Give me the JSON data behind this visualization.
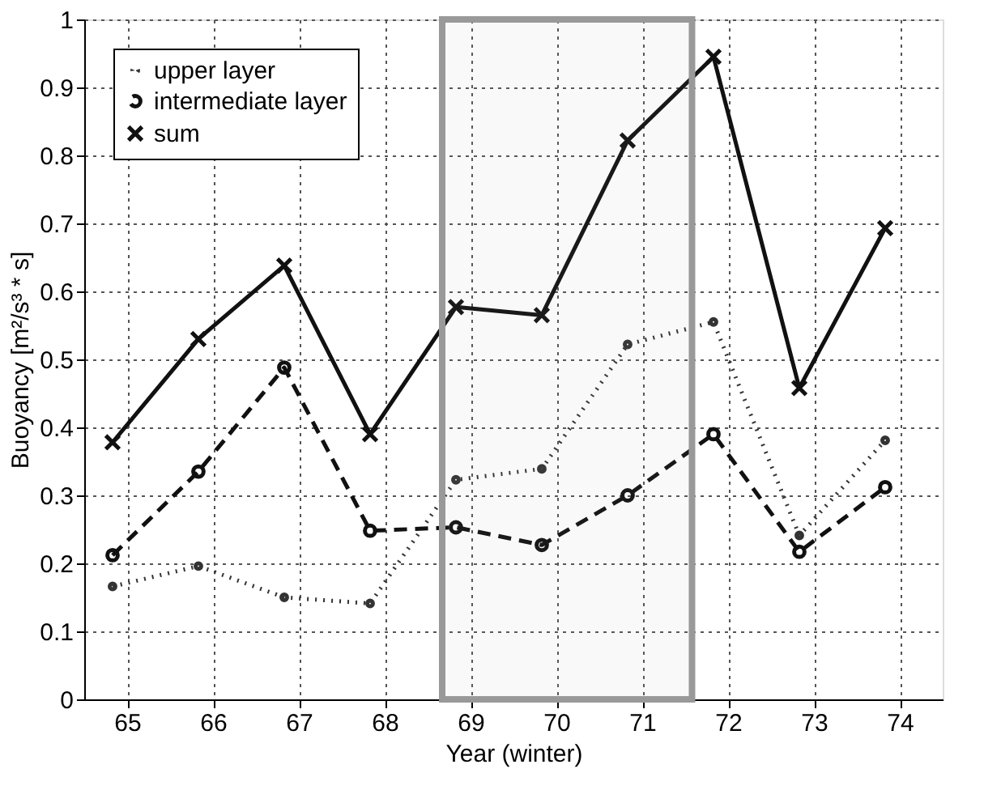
{
  "chart_data": {
    "type": "line",
    "xlabel": "Year (winter)",
    "ylabel": "Buoyancy [m²/s³ * s]",
    "x": [
      64.83,
      65.83,
      66.83,
      67.83,
      68.83,
      69.83,
      70.83,
      71.83,
      72.83,
      73.83
    ],
    "series": [
      {
        "name": "upper layer",
        "color": "#333333",
        "line_style": "dotted",
        "marker": "circle",
        "values": [
          0.166,
          0.196,
          0.15,
          0.141,
          0.323,
          0.339,
          0.522,
          0.555,
          0.241,
          0.381
        ]
      },
      {
        "name": "intermediate layer",
        "color": "#111111",
        "line_style": "dashed",
        "marker": "circle",
        "values": [
          0.212,
          0.335,
          0.488,
          0.248,
          0.253,
          0.227,
          0.3,
          0.39,
          0.217,
          0.312
        ]
      },
      {
        "name": "sum",
        "color": "#111111",
        "line_style": "solid",
        "marker": "cross",
        "values": [
          0.378,
          0.53,
          0.638,
          0.39,
          0.577,
          0.565,
          0.822,
          0.945,
          0.458,
          0.693
        ]
      }
    ],
    "bands": [
      {
        "axis": "x",
        "from": 68.67,
        "to": 71.58,
        "color": "#999999"
      }
    ],
    "xlim": [
      64.5,
      74.5
    ],
    "xticks": [
      65,
      66,
      67,
      68,
      69,
      70,
      71,
      72,
      73,
      74
    ],
    "ylim": [
      0,
      1
    ],
    "yticks": [
      0,
      0.1,
      0.2,
      0.3,
      0.4,
      0.5,
      0.6,
      0.7,
      0.8,
      0.9,
      1
    ],
    "grid": true,
    "legend": "top left"
  }
}
